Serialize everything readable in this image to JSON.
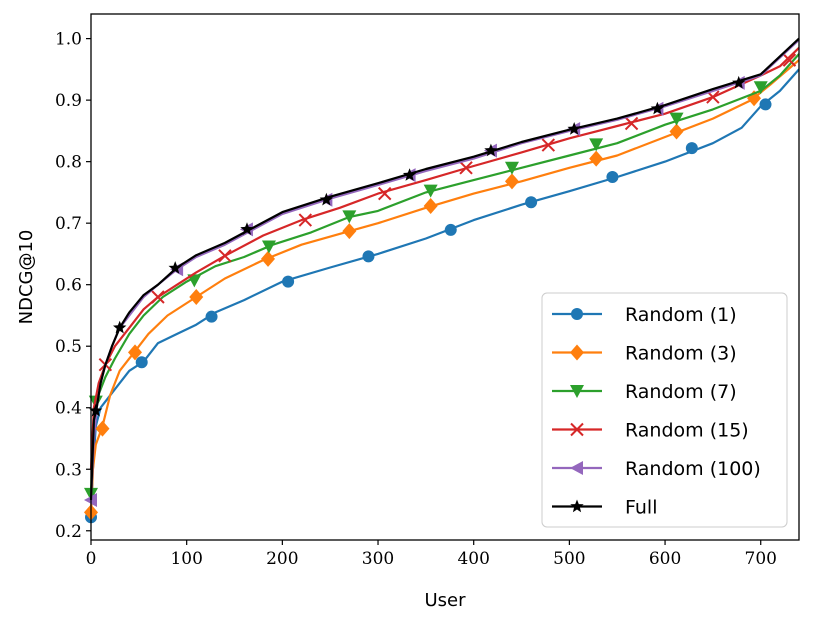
{
  "chart_data": {
    "type": "line",
    "title": "",
    "xlabel": "User",
    "ylabel": "NDCG@10",
    "xlim": [
      0,
      740
    ],
    "ylim": [
      0.185,
      1.04
    ],
    "xticks": [
      0,
      100,
      200,
      300,
      400,
      500,
      600,
      700
    ],
    "yticks": [
      0.2,
      0.3,
      0.4,
      0.5,
      0.6,
      0.7,
      0.8,
      0.9,
      1.0
    ],
    "legend_position": "lower-right",
    "series": [
      {
        "name": "Random (1)",
        "color": "#1f77b4",
        "marker": "circle",
        "x": [
          0,
          2,
          5,
          10,
          20,
          30,
          40,
          55,
          70,
          90,
          110,
          130,
          160,
          200,
          250,
          300,
          350,
          400,
          450,
          500,
          550,
          600,
          650,
          680,
          700,
          720,
          740
        ],
        "y": [
          0.222,
          0.3,
          0.37,
          0.4,
          0.42,
          0.44,
          0.46,
          0.475,
          0.505,
          0.52,
          0.535,
          0.555,
          0.575,
          0.605,
          0.628,
          0.65,
          0.675,
          0.705,
          0.73,
          0.752,
          0.775,
          0.8,
          0.83,
          0.855,
          0.89,
          0.915,
          0.95
        ],
        "markers_x": [
          0,
          53,
          126,
          206,
          290,
          376,
          460,
          545,
          628,
          705
        ],
        "markers_y": [
          0.222,
          0.474,
          0.548,
          0.605,
          0.646,
          0.689,
          0.734,
          0.775,
          0.822,
          0.893
        ]
      },
      {
        "name": "Random (3)",
        "color": "#ff7f0e",
        "marker": "diamond",
        "x": [
          0,
          2,
          5,
          12,
          20,
          30,
          45,
          60,
          80,
          110,
          140,
          180,
          220,
          270,
          300,
          350,
          400,
          450,
          500,
          550,
          600,
          650,
          690,
          710,
          740
        ],
        "y": [
          0.23,
          0.3,
          0.34,
          0.37,
          0.42,
          0.46,
          0.49,
          0.52,
          0.55,
          0.58,
          0.61,
          0.64,
          0.665,
          0.687,
          0.7,
          0.725,
          0.748,
          0.768,
          0.79,
          0.81,
          0.84,
          0.87,
          0.9,
          0.925,
          0.965
        ],
        "markers_x": [
          0,
          12,
          46,
          110,
          185,
          270,
          355,
          440,
          528,
          612,
          693
        ],
        "markers_y": [
          0.23,
          0.366,
          0.49,
          0.58,
          0.642,
          0.687,
          0.728,
          0.768,
          0.805,
          0.849,
          0.903
        ]
      },
      {
        "name": "Random (7)",
        "color": "#2ca02c",
        "marker": "triangle-down",
        "x": [
          0,
          2,
          5,
          15,
          25,
          40,
          55,
          75,
          100,
          130,
          160,
          190,
          230,
          270,
          300,
          350,
          400,
          450,
          500,
          550,
          600,
          650,
          700,
          720,
          740
        ],
        "y": [
          0.26,
          0.36,
          0.41,
          0.45,
          0.48,
          0.52,
          0.55,
          0.58,
          0.605,
          0.63,
          0.645,
          0.665,
          0.685,
          0.71,
          0.72,
          0.75,
          0.77,
          0.79,
          0.81,
          0.83,
          0.86,
          0.885,
          0.915,
          0.94,
          0.975
        ],
        "markers_x": [
          0,
          5,
          108,
          186,
          270,
          355,
          440,
          528,
          612,
          700
        ],
        "markers_y": [
          0.26,
          0.41,
          0.607,
          0.662,
          0.711,
          0.753,
          0.79,
          0.828,
          0.87,
          0.921
        ]
      },
      {
        "name": "Random (15)",
        "color": "#d62728",
        "marker": "x",
        "x": [
          0,
          3,
          8,
          15,
          25,
          40,
          55,
          70,
          90,
          110,
          140,
          180,
          220,
          260,
          300,
          350,
          400,
          450,
          500,
          550,
          600,
          650,
          700,
          720,
          740
        ],
        "y": [
          0.3,
          0.4,
          0.44,
          0.47,
          0.5,
          0.53,
          0.56,
          0.58,
          0.6,
          0.62,
          0.647,
          0.68,
          0.705,
          0.725,
          0.748,
          0.77,
          0.793,
          0.815,
          0.838,
          0.858,
          0.878,
          0.905,
          0.94,
          0.955,
          0.985
        ],
        "markers_x": [
          15,
          70,
          140,
          224,
          307,
          392,
          478,
          565,
          650,
          730
        ],
        "markers_y": [
          0.47,
          0.58,
          0.647,
          0.705,
          0.748,
          0.79,
          0.827,
          0.862,
          0.905,
          0.965
        ]
      },
      {
        "name": "Random (100)",
        "color": "#9467bd",
        "marker": "triangle-left",
        "x": [
          0,
          3,
          6,
          10,
          15,
          22,
          30,
          40,
          55,
          70,
          90,
          110,
          140,
          170,
          200,
          250,
          300,
          350,
          400,
          450,
          500,
          550,
          600,
          650,
          700,
          740
        ],
        "y": [
          0.25,
          0.35,
          0.4,
          0.44,
          0.47,
          0.5,
          0.53,
          0.55,
          0.58,
          0.6,
          0.625,
          0.645,
          0.665,
          0.69,
          0.715,
          0.74,
          0.762,
          0.785,
          0.805,
          0.83,
          0.85,
          0.868,
          0.89,
          0.915,
          0.94,
          0.998
        ],
        "markers_x": [
          0,
          90,
          163,
          246,
          333,
          418,
          505,
          592,
          677
        ],
        "markers_y": [
          0.25,
          0.625,
          0.69,
          0.738,
          0.778,
          0.818,
          0.853,
          0.886,
          0.928
        ]
      },
      {
        "name": "Full",
        "color": "#000000",
        "marker": "star",
        "x": [
          0,
          3,
          6,
          10,
          15,
          22,
          30,
          40,
          55,
          70,
          90,
          110,
          140,
          170,
          200,
          250,
          300,
          350,
          400,
          450,
          500,
          550,
          600,
          650,
          700,
          740
        ],
        "y": [
          0.25,
          0.38,
          0.4,
          0.44,
          0.47,
          0.5,
          0.53,
          0.555,
          0.583,
          0.6,
          0.628,
          0.648,
          0.668,
          0.693,
          0.718,
          0.743,
          0.765,
          0.788,
          0.808,
          0.832,
          0.852,
          0.87,
          0.892,
          0.918,
          0.942,
          1.0
        ],
        "markers_x": [
          5,
          30,
          88,
          163,
          246,
          333,
          418,
          505,
          592,
          677
        ],
        "markers_y": [
          0.395,
          0.53,
          0.627,
          0.69,
          0.738,
          0.778,
          0.818,
          0.853,
          0.886,
          0.928
        ]
      }
    ]
  }
}
